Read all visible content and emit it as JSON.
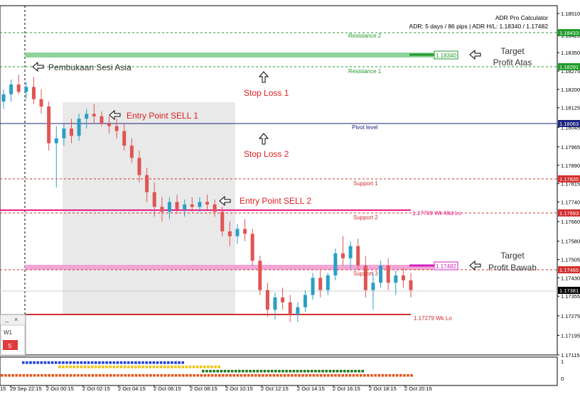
{
  "indicator": {
    "name": "ADR Pro Calculator",
    "stats": "ADR: 5 days / 86 pips | ADR H/L: 1.18340 / 1.17482"
  },
  "levels": {
    "resistance2": {
      "label": "Resistance 2",
      "price": "1.18433"
    },
    "target_high": {
      "label": "1.18340",
      "price": 1.1834
    },
    "resistance1": {
      "label": "Resistance 1",
      "price": "1.18291"
    },
    "pivot": {
      "label": "Pivot level",
      "price": "1.18063"
    },
    "support1": {
      "label": "Support 1",
      "price": "1.17835"
    },
    "wk_mid": {
      "label": "1.17709  Wk Mid Lo",
      "price": 1.17709
    },
    "support2": {
      "label": "Support 2",
      "price": "1.17693"
    },
    "target_low": {
      "label": "1.17482",
      "price": 1.17482
    },
    "support3": {
      "label": "Support 3",
      "price": "1.17465"
    },
    "current": {
      "price": "1.17381"
    },
    "wk_lo": {
      "label": "1.17279  Wk Lo",
      "price": 1.17279
    }
  },
  "annotations": {
    "asia_open": "Pembukaan Sesi Asia",
    "target_up_1": "Target",
    "target_up_2": "Profit Atas",
    "stop_loss_1": "Stop Loss 1",
    "entry_1": "Entry Point SELL 1",
    "stop_loss_2": "Stop Loss 2",
    "entry_2": "Entry Point SELL 2",
    "target_down_1": "Target",
    "target_down_2": "Profit Bawah"
  },
  "price_axis": [
    "1.18510",
    "1.18420",
    "1.18350",
    "1.18275",
    "1.18200",
    "1.18125",
    "1.18045",
    "1.17965",
    "1.17890",
    "1.17815",
    "1.17740",
    "1.17660",
    "1.17580",
    "1.17505",
    "1.17430",
    "1.17355",
    "1.17275",
    "1.17195",
    "1.17115"
  ],
  "time_axis": [
    "29 Sep 22:15",
    "2 Oct 00:15",
    "2 Oct 02:15",
    "2 Oct 04:15",
    "2 Oct 06:15",
    "2 Oct 08:15",
    "2 Oct 10:15",
    "2 Oct 12:15",
    "2 Oct 14:15",
    "2 Oct 16:15",
    "2 Oct 18:15",
    "2 Oct 20:15"
  ],
  "time_axis_left_fragment": "15",
  "indicator_panel": {
    "top": "1",
    "bottom": "0"
  },
  "timeframe_box": {
    "title": "W1",
    "button": "S"
  },
  "colors": {
    "bull": "#2a9fc6",
    "bear": "#e05555",
    "resistance": "#1f9a2a",
    "support": "#d32f2f",
    "pivot": "#1a237e",
    "wk_mid": "#e91e8a",
    "target_high": "#8fd49a",
    "target_low": "#f3a6d6"
  },
  "chart_data": {
    "type": "candlestick",
    "candles": [
      [
        1.1815,
        1.182,
        1.1812,
        1.1818
      ],
      [
        1.1818,
        1.1824,
        1.1815,
        1.1822
      ],
      [
        1.1822,
        1.1826,
        1.1818,
        1.1819
      ],
      [
        1.1819,
        1.1823,
        1.1816,
        1.1821
      ],
      [
        1.1821,
        1.1825,
        1.1814,
        1.1816
      ],
      [
        1.1816,
        1.182,
        1.181,
        1.1813
      ],
      [
        1.1813,
        1.1815,
        1.1795,
        1.1798
      ],
      [
        1.1798,
        1.1805,
        1.178,
        1.18
      ],
      [
        1.18,
        1.1806,
        1.1797,
        1.1804
      ],
      [
        1.1804,
        1.1808,
        1.1798,
        1.1801
      ],
      [
        1.1801,
        1.181,
        1.1799,
        1.1808
      ],
      [
        1.1808,
        1.1812,
        1.1804,
        1.181
      ],
      [
        1.181,
        1.1814,
        1.1806,
        1.1809
      ],
      [
        1.1809,
        1.1811,
        1.1805,
        1.1806
      ],
      [
        1.1806,
        1.1809,
        1.1802,
        1.1805
      ],
      [
        1.1805,
        1.1808,
        1.18,
        1.1803
      ],
      [
        1.1803,
        1.1806,
        1.1795,
        1.1797
      ],
      [
        1.1797,
        1.18,
        1.179,
        1.1792
      ],
      [
        1.1792,
        1.1795,
        1.1782,
        1.1785
      ],
      [
        1.1785,
        1.1788,
        1.1774,
        1.1778
      ],
      [
        1.1778,
        1.1782,
        1.1768,
        1.1772
      ],
      [
        1.1772,
        1.1776,
        1.1766,
        1.177
      ],
      [
        1.177,
        1.1776,
        1.1767,
        1.1774
      ],
      [
        1.1774,
        1.1777,
        1.1769,
        1.1771
      ],
      [
        1.1771,
        1.1775,
        1.1768,
        1.1773
      ],
      [
        1.1773,
        1.1776,
        1.177,
        1.1772
      ],
      [
        1.1772,
        1.1776,
        1.177,
        1.1774
      ],
      [
        1.1774,
        1.1777,
        1.1771,
        1.1773
      ],
      [
        1.1773,
        1.1775,
        1.1768,
        1.177
      ],
      [
        1.177,
        1.1772,
        1.176,
        1.1762
      ],
      [
        1.1762,
        1.1766,
        1.1756,
        1.176
      ],
      [
        1.176,
        1.1765,
        1.1757,
        1.1763
      ],
      [
        1.1763,
        1.1767,
        1.1758,
        1.1761
      ],
      [
        1.1761,
        1.1763,
        1.1748,
        1.175
      ],
      [
        1.175,
        1.1752,
        1.1736,
        1.1738
      ],
      [
        1.1738,
        1.1741,
        1.1727,
        1.173
      ],
      [
        1.173,
        1.1737,
        1.1726,
        1.1735
      ],
      [
        1.1735,
        1.1739,
        1.173,
        1.1733
      ],
      [
        1.1733,
        1.1736,
        1.1725,
        1.1728
      ],
      [
        1.1728,
        1.1733,
        1.1725,
        1.1731
      ],
      [
        1.1731,
        1.1738,
        1.1729,
        1.1736
      ],
      [
        1.1736,
        1.1745,
        1.1734,
        1.1743
      ],
      [
        1.1743,
        1.1746,
        1.1735,
        1.1738
      ],
      [
        1.1738,
        1.1745,
        1.1736,
        1.1744
      ],
      [
        1.1744,
        1.1755,
        1.1742,
        1.1753
      ],
      [
        1.1753,
        1.176,
        1.1748,
        1.1751
      ],
      [
        1.1751,
        1.1758,
        1.1747,
        1.1756
      ],
      [
        1.1756,
        1.1759,
        1.1746,
        1.1748
      ],
      [
        1.1748,
        1.1752,
        1.1735,
        1.1738
      ],
      [
        1.1738,
        1.1745,
        1.173,
        1.1741
      ],
      [
        1.1741,
        1.175,
        1.1739,
        1.1748
      ],
      [
        1.1748,
        1.1751,
        1.1738,
        1.1741
      ],
      [
        1.1741,
        1.1746,
        1.1736,
        1.1744
      ],
      [
        1.1744,
        1.1747,
        1.1739,
        1.1742
      ],
      [
        1.1742,
        1.1745,
        1.1735,
        1.1738
      ]
    ]
  }
}
